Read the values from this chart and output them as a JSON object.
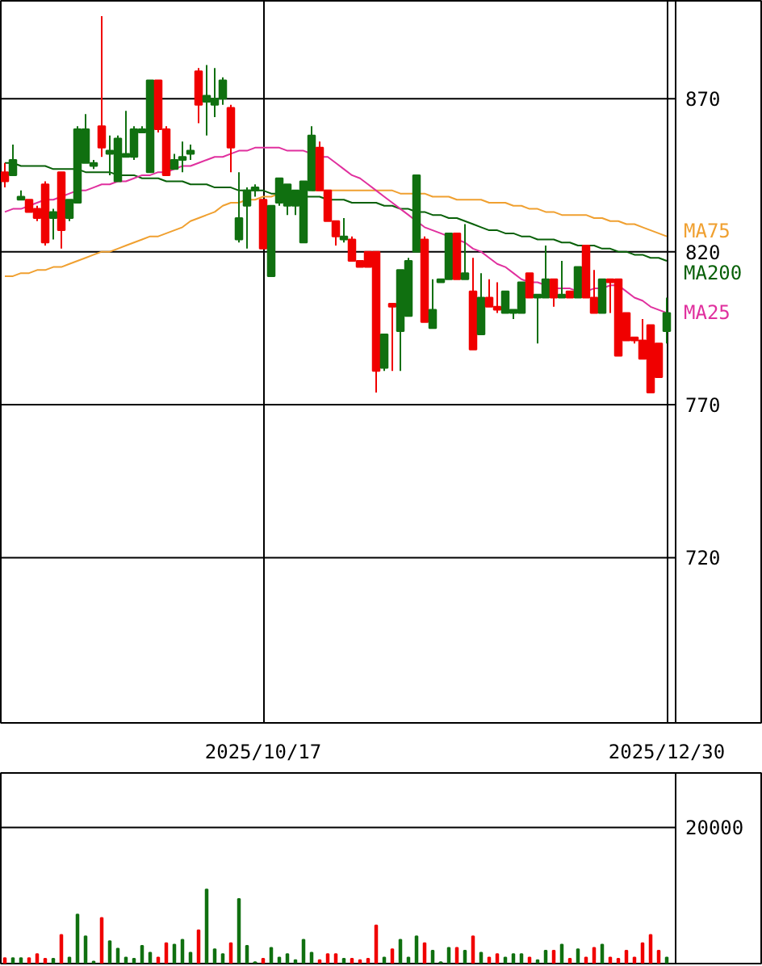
{
  "chart_data": [
    {
      "type": "candlestick",
      "categories": [
        null,
        null,
        null,
        null,
        null,
        null,
        null,
        null,
        null,
        null,
        null,
        null,
        null,
        null,
        null,
        null,
        null,
        null,
        null,
        null,
        null,
        null,
        null,
        null,
        null,
        null,
        null,
        null,
        null,
        null,
        null,
        null,
        "2025/10/17",
        null,
        null,
        null,
        null,
        null,
        null,
        null,
        null,
        null,
        null,
        null,
        null,
        null,
        null,
        null,
        null,
        null,
        null,
        null,
        null,
        null,
        null,
        null,
        null,
        null,
        null,
        null,
        null,
        null,
        null,
        null,
        null,
        null,
        null,
        null,
        null,
        null,
        null,
        null,
        null,
        null,
        null,
        null,
        null,
        null,
        null,
        null,
        null,
        null,
        "2025/12/30"
      ],
      "ohlc": [
        [
          846,
          849,
          841,
          843
        ],
        [
          845,
          855,
          845,
          850
        ],
        [
          837,
          840,
          837,
          838
        ],
        [
          837,
          837,
          833,
          833
        ],
        [
          834,
          835,
          830,
          831
        ],
        [
          842,
          843,
          822,
          823
        ],
        [
          831,
          834,
          824,
          833
        ],
        [
          846,
          846,
          821,
          827
        ],
        [
          831,
          837,
          830,
          837
        ],
        [
          836,
          861,
          836,
          860
        ],
        [
          849,
          865,
          849,
          860
        ],
        [
          848,
          850,
          847,
          849
        ],
        [
          861,
          897,
          851,
          854
        ],
        [
          852,
          858,
          845,
          853
        ],
        [
          843,
          858,
          843,
          857
        ],
        [
          851,
          866,
          851,
          852
        ],
        [
          851,
          861,
          850,
          860
        ],
        [
          859,
          861,
          859,
          860
        ],
        [
          846,
          876,
          846,
          876
        ],
        [
          876,
          876,
          859,
          860
        ],
        [
          860,
          861,
          845,
          845
        ],
        [
          847,
          852,
          847,
          850
        ],
        [
          850,
          856,
          846,
          851
        ],
        [
          852,
          855,
          850,
          853
        ],
        [
          879,
          880,
          862,
          868
        ],
        [
          869,
          881,
          858,
          871
        ],
        [
          868,
          880,
          864,
          870
        ],
        [
          870,
          877,
          868,
          876
        ],
        [
          867,
          868,
          846,
          854
        ],
        [
          824,
          846,
          823,
          831
        ],
        [
          835,
          841,
          821,
          840
        ],
        [
          840,
          842,
          838,
          841
        ],
        [
          837,
          837,
          821,
          821
        ],
        [
          812,
          835,
          812,
          835
        ],
        [
          836,
          844,
          835,
          844
        ],
        [
          835,
          842,
          832,
          842
        ],
        [
          835,
          840,
          832,
          840
        ],
        [
          823,
          843,
          823,
          843
        ],
        [
          840,
          861,
          840,
          858
        ],
        [
          854,
          856,
          840,
          840
        ],
        [
          840,
          840,
          830,
          830
        ],
        [
          830,
          830,
          822,
          825
        ],
        [
          824,
          831,
          823,
          825
        ],
        [
          824,
          825,
          817,
          817
        ],
        [
          817,
          817,
          815,
          815
        ],
        [
          820,
          820,
          815,
          815
        ],
        [
          820,
          820,
          774,
          781
        ],
        [
          782,
          793,
          781,
          793
        ],
        [
          803,
          803,
          781,
          802
        ],
        [
          794,
          814,
          781,
          814
        ],
        [
          799,
          818,
          799,
          817
        ],
        [
          820,
          845,
          820,
          845
        ],
        [
          824,
          825,
          797,
          797
        ],
        [
          795,
          811,
          795,
          801
        ],
        [
          810,
          811,
          810,
          811
        ],
        [
          811,
          826,
          811,
          826
        ],
        [
          826,
          826,
          811,
          811
        ],
        [
          811,
          829,
          811,
          813
        ],
        [
          807,
          818,
          788,
          788
        ],
        [
          793,
          813,
          793,
          805
        ],
        [
          805,
          811,
          802,
          802
        ],
        [
          802,
          810,
          800,
          801
        ],
        [
          800,
          807,
          800,
          807
        ],
        [
          800,
          801,
          798,
          801
        ],
        [
          800,
          810,
          800,
          810
        ],
        [
          813,
          813,
          805,
          805
        ],
        [
          805,
          806,
          790,
          806
        ],
        [
          805,
          822,
          805,
          811
        ],
        [
          811,
          811,
          802,
          805
        ],
        [
          805,
          817,
          805,
          806
        ],
        [
          807,
          807,
          805,
          805
        ],
        [
          805,
          815,
          805,
          815
        ],
        [
          822,
          822,
          805,
          805
        ],
        [
          805,
          814,
          800,
          800
        ],
        [
          800,
          811,
          800,
          811
        ],
        [
          811,
          811,
          800,
          810
        ],
        [
          811,
          811,
          786,
          786
        ],
        [
          800,
          800,
          791,
          791
        ],
        [
          792,
          792,
          790,
          791
        ],
        [
          791,
          798,
          785,
          785
        ],
        [
          796,
          796,
          774,
          774
        ],
        [
          790,
          790,
          779,
          779
        ],
        [
          794,
          805,
          790,
          800
        ]
      ],
      "colors": [
        "#f00000",
        "#107010",
        "#107010",
        "#f00000",
        "#f00000",
        "#f00000",
        "#107010",
        "#f00000",
        "#107010",
        "#107010",
        "#107010",
        "#107010",
        "#f00000",
        "#107010",
        "#107010",
        "#107010",
        "#107010",
        "#107010",
        "#107010",
        "#f00000",
        "#f00000",
        "#107010",
        "#107010",
        "#107010",
        "#f00000",
        "#107010",
        "#107010",
        "#107010",
        "#f00000",
        "#107010",
        "#107010",
        "#107010",
        "#f00000",
        "#107010",
        "#107010",
        "#107010",
        "#107010",
        "#107010",
        "#107010",
        "#f00000",
        "#f00000",
        "#f00000",
        "#107010",
        "#f00000",
        "#f00000",
        "#f00000",
        "#f00000",
        "#107010",
        "#f00000",
        "#107010",
        "#107010",
        "#107010",
        "#f00000",
        "#107010",
        "#107010",
        "#107010",
        "#f00000",
        "#107010",
        "#f00000",
        "#107010",
        "#f00000",
        "#f00000",
        "#107010",
        "#107010",
        "#107010",
        "#f00000",
        "#107010",
        "#107010",
        "#f00000",
        "#107010",
        "#f00000",
        "#107010",
        "#f00000",
        "#f00000",
        "#107010",
        "#f00000",
        "#f00000",
        "#f00000",
        "#f00000",
        "#f00000",
        "#f00000",
        "#f00000",
        "#107010"
      ],
      "series": [
        {
          "name": "MA75",
          "type": "line",
          "color": "#f0a030",
          "values": [
            812,
            812,
            813,
            813,
            814,
            814,
            815,
            815,
            816,
            817,
            818,
            819,
            820,
            820,
            821,
            822,
            823,
            824,
            825,
            825,
            826,
            827,
            828,
            830,
            831,
            832,
            833,
            835,
            836,
            836,
            837,
            837,
            838,
            838,
            839,
            null,
            null,
            null,
            840,
            840,
            840,
            840,
            840,
            840,
            840,
            840,
            840,
            840,
            840,
            839,
            839,
            839,
            839,
            838,
            838,
            838,
            837,
            837,
            837,
            837,
            836,
            836,
            836,
            835,
            835,
            834,
            834,
            833,
            833,
            832,
            832,
            832,
            832,
            831,
            831,
            830,
            830,
            829,
            829,
            828,
            827,
            826,
            825
          ]
        },
        {
          "name": "MA200",
          "type": "line",
          "color": "#086008",
          "values": [
            849,
            849,
            848,
            848,
            848,
            848,
            847,
            847,
            847,
            847,
            846,
            846,
            846,
            846,
            845,
            845,
            845,
            844,
            844,
            844,
            843,
            843,
            843,
            842,
            842,
            842,
            841,
            841,
            841,
            840,
            840,
            840,
            840,
            839,
            839,
            839,
            839,
            838,
            838,
            838,
            837,
            837,
            837,
            836,
            836,
            836,
            836,
            835,
            835,
            834,
            834,
            833,
            833,
            832,
            832,
            831,
            831,
            830,
            829,
            828,
            827,
            827,
            826,
            826,
            825,
            825,
            824,
            824,
            824,
            823,
            823,
            822,
            822,
            822,
            821,
            821,
            820,
            820,
            819,
            819,
            818,
            818,
            817
          ]
        },
        {
          "name": "MA25",
          "type": "line",
          "color": "#e0309e",
          "values": [
            833,
            834,
            834,
            835,
            836,
            837,
            837,
            838,
            839,
            840,
            840,
            841,
            842,
            842,
            843,
            843,
            844,
            845,
            845,
            846,
            846,
            847,
            848,
            848,
            849,
            850,
            851,
            851,
            852,
            853,
            853,
            854,
            854,
            854,
            854,
            853,
            853,
            853,
            852,
            851,
            851,
            849,
            847,
            845,
            844,
            842,
            840,
            838,
            836,
            834,
            832,
            830,
            828,
            827,
            826,
            825,
            824,
            823,
            821,
            820,
            818,
            816,
            815,
            813,
            811,
            810,
            810,
            809,
            808,
            808,
            808,
            807,
            807,
            808,
            808,
            809,
            809,
            807,
            805,
            804,
            802,
            801,
            800
          ]
        }
      ],
      "ylim": [
        666,
        902
      ],
      "yticks": [
        720,
        770,
        820,
        870
      ],
      "grid": true
    },
    {
      "type": "bar",
      "categories": [
        null,
        null,
        null,
        null,
        null,
        null,
        null,
        null,
        null,
        null,
        null,
        null,
        null,
        null,
        null,
        null,
        null,
        null,
        null,
        null,
        null,
        null,
        null,
        null,
        null,
        null,
        null,
        null,
        null,
        null,
        null,
        null,
        "2025/10/17",
        null,
        null,
        null,
        null,
        null,
        null,
        null,
        null,
        null,
        null,
        null,
        null,
        null,
        null,
        null,
        null,
        null,
        null,
        null,
        null,
        null,
        null,
        null,
        null,
        null,
        null,
        null,
        null,
        null,
        null,
        null,
        null,
        null,
        null,
        null,
        null,
        null,
        null,
        null,
        null,
        null,
        null,
        null,
        null,
        null,
        null,
        null,
        null,
        null,
        "2025/12/30"
      ],
      "values": [
        800,
        800,
        800,
        800,
        1400,
        700,
        700,
        4200,
        900,
        7200,
        4000,
        300,
        6700,
        3300,
        2200,
        900,
        700,
        2600,
        1600,
        900,
        3000,
        2800,
        3500,
        1600,
        4900,
        10900,
        2100,
        1400,
        3000,
        9500,
        2600,
        200,
        700,
        2300,
        900,
        1400,
        500,
        3500,
        1600,
        500,
        1400,
        1400,
        700,
        700,
        500,
        700,
        5600,
        900,
        2100,
        3500,
        900,
        4000,
        3000,
        1900,
        200,
        2300,
        2300,
        1900,
        4000,
        1600,
        900,
        1400,
        900,
        1400,
        1400,
        900,
        500,
        1900,
        1900,
        2800,
        700,
        2100,
        900,
        2300,
        2800,
        900,
        700,
        1900,
        900,
        3000,
        4200,
        1900,
        900
      ],
      "colors": [
        "#f00000",
        "#107010",
        "#107010",
        "#f00000",
        "#f00000",
        "#f00000",
        "#107010",
        "#f00000",
        "#107010",
        "#107010",
        "#107010",
        "#107010",
        "#f00000",
        "#107010",
        "#107010",
        "#107010",
        "#107010",
        "#107010",
        "#107010",
        "#f00000",
        "#f00000",
        "#107010",
        "#107010",
        "#107010",
        "#f00000",
        "#107010",
        "#107010",
        "#107010",
        "#f00000",
        "#107010",
        "#107010",
        "#107010",
        "#f00000",
        "#107010",
        "#107010",
        "#107010",
        "#107010",
        "#107010",
        "#107010",
        "#f00000",
        "#f00000",
        "#f00000",
        "#107010",
        "#f00000",
        "#f00000",
        "#f00000",
        "#f00000",
        "#107010",
        "#f00000",
        "#107010",
        "#107010",
        "#107010",
        "#f00000",
        "#107010",
        "#107010",
        "#107010",
        "#f00000",
        "#107010",
        "#f00000",
        "#107010",
        "#f00000",
        "#f00000",
        "#107010",
        "#107010",
        "#107010",
        "#f00000",
        "#107010",
        "#107010",
        "#f00000",
        "#107010",
        "#f00000",
        "#107010",
        "#f00000",
        "#f00000",
        "#107010",
        "#f00000",
        "#f00000",
        "#f00000",
        "#f00000",
        "#f00000",
        "#f00000",
        "#f00000",
        "#107010"
      ],
      "ylim": [
        0,
        28000
      ],
      "yticks": [
        20000
      ],
      "grid": "y",
      "tick_labels": "y"
    }
  ]
}
